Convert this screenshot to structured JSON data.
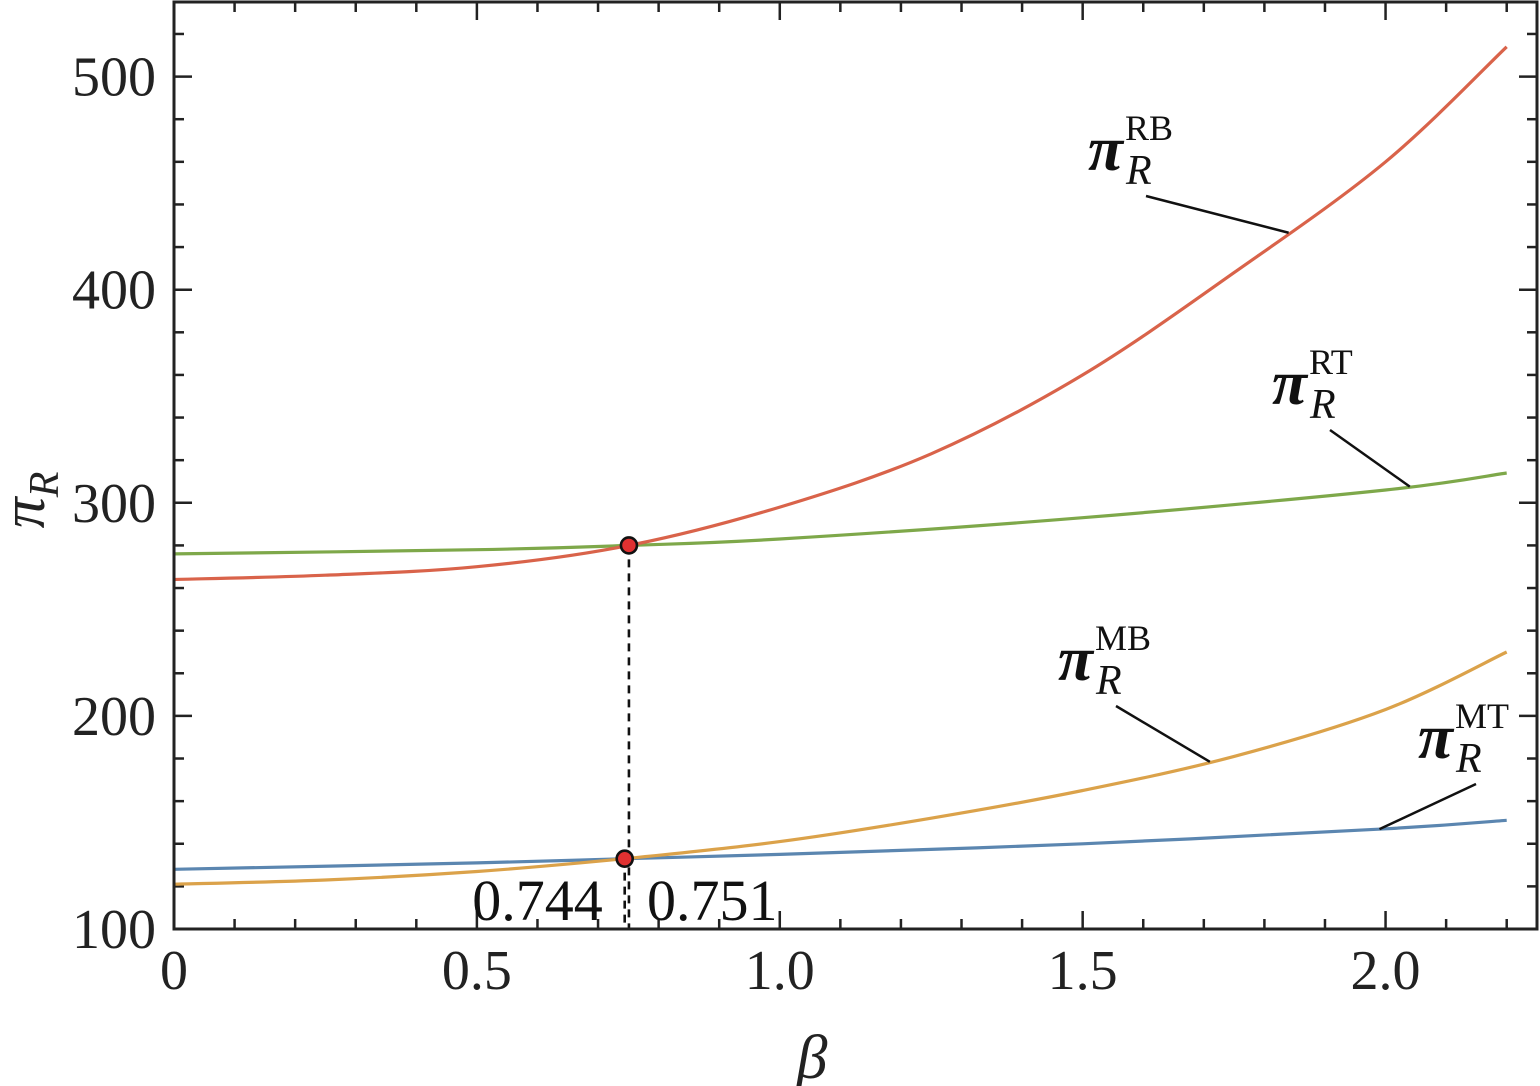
{
  "chart_data": {
    "type": "line",
    "xlabel": "β",
    "ylabel": "π",
    "ylabel_sub": "R",
    "xlim": [
      0,
      2.25
    ],
    "ylim": [
      100,
      535
    ],
    "x_ticks": [
      0,
      0.5,
      1.0,
      1.5,
      2.0
    ],
    "x_tick_labels": [
      "0",
      "0.5",
      "1.0",
      "1.5",
      "2.0"
    ],
    "y_ticks": [
      100,
      200,
      300,
      400,
      500
    ],
    "y_tick_labels": [
      "100",
      "200",
      "300",
      "400",
      "500"
    ],
    "grid": false,
    "series": [
      {
        "name": "RB",
        "label_main": "π",
        "label_sub": "R",
        "label_sup": "RB",
        "color": "#d9634a",
        "x": [
          0,
          0.25,
          0.5,
          0.751,
          1.0,
          1.25,
          1.5,
          1.75,
          2.0,
          2.2
        ],
        "y": [
          264,
          266,
          270,
          280,
          298,
          323,
          360,
          408,
          460,
          514
        ]
      },
      {
        "name": "RT",
        "label_main": "π",
        "label_sub": "R",
        "label_sup": "RT",
        "color": "#7ea84a",
        "x": [
          0,
          0.5,
          0.751,
          1.0,
          1.5,
          2.0,
          2.2
        ],
        "y": [
          276,
          278,
          280,
          283,
          293,
          306,
          314
        ]
      },
      {
        "name": "MB",
        "label_main": "π",
        "label_sub": "R",
        "label_sup": "MB",
        "color": "#dba24a",
        "x": [
          0,
          0.25,
          0.5,
          0.744,
          1.0,
          1.25,
          1.5,
          1.75,
          2.0,
          2.2
        ],
        "y": [
          121,
          123,
          127,
          133,
          141,
          152,
          165,
          181,
          203,
          230
        ]
      },
      {
        "name": "MT",
        "label_main": "π",
        "label_sub": "R",
        "label_sup": "MT",
        "color": "#5b86b0",
        "x": [
          0,
          0.5,
          0.744,
          1.0,
          1.5,
          2.0,
          2.2
        ],
        "y": [
          128,
          131,
          133,
          135,
          140,
          147,
          151
        ]
      }
    ],
    "markers": [
      {
        "x": 0.751,
        "y": 280,
        "label": "0.751"
      },
      {
        "x": 0.744,
        "y": 133,
        "label": "0.744"
      }
    ],
    "marker_color": "#e03131"
  }
}
